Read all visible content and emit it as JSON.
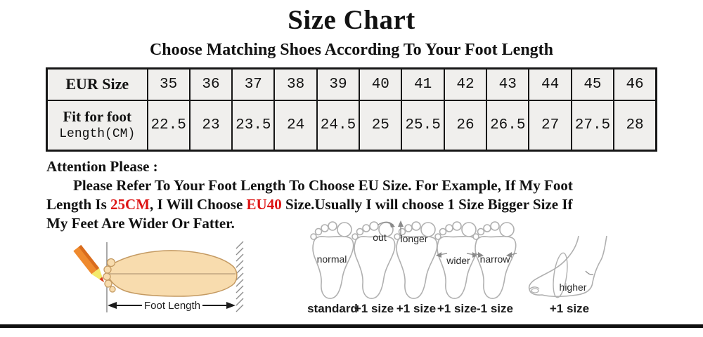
{
  "title": "Size Chart",
  "subtitle": "Choose Matching Shoes According To Your Foot Length",
  "size_table": {
    "eur_header": "EUR Size",
    "cm_header_line1": "Fit for foot",
    "cm_header_line2": "Length(CM)",
    "eur_sizes": [
      "35",
      "36",
      "37",
      "38",
      "39",
      "40",
      "41",
      "42",
      "43",
      "44",
      "45",
      "46"
    ],
    "foot_lengths_cm": [
      "22.5",
      "23",
      "23.5",
      "24",
      "24.5",
      "25",
      "25.5",
      "26",
      "26.5",
      "27",
      "27.5",
      "28"
    ]
  },
  "attention": {
    "heading": "Attention Please :",
    "lines": [
      {
        "indent": true,
        "segments": [
          {
            "t": "Please Refer To Your Foot Length To Choose EU Size. For Example, If My Foot"
          }
        ]
      },
      {
        "indent": false,
        "segments": [
          {
            "t": "Length Is "
          },
          {
            "t": "25CM",
            "red": true
          },
          {
            "t": ", I Will Choose "
          },
          {
            "t": "EU40",
            "red": true
          },
          {
            "t": " Size.Usually I will choose 1 Size Bigger Size If"
          }
        ]
      },
      {
        "indent": false,
        "segments": [
          {
            "t": "My Feet Are Wider Or Fatter."
          }
        ]
      }
    ]
  },
  "measure": {
    "label": "Foot Length"
  },
  "feet": {
    "items": [
      {
        "label": "normal",
        "size_note": "standard"
      },
      {
        "label": "out",
        "size_note": "+1 size"
      },
      {
        "label": "longer",
        "size_note": "+1 size"
      },
      {
        "label": "wider",
        "size_note": "+1 size"
      },
      {
        "label": "narrow",
        "size_note": "-1 size"
      },
      {
        "label": "higher",
        "size_note": "+1 size"
      }
    ]
  },
  "colors": {
    "accent_red": "#dd1414",
    "table_cell_bg": "#f0efed",
    "table_border": "#161616",
    "foot_fill": "#f8dcae",
    "foot_outline": "#c49a62",
    "pencil_orange": "#ef8a2e",
    "pencil_stripe": "#d96c1d",
    "pencil_yellow": "#f3e96a",
    "pencil_lead": "#da3b20",
    "sketch_gray": "#b0b0b0"
  }
}
